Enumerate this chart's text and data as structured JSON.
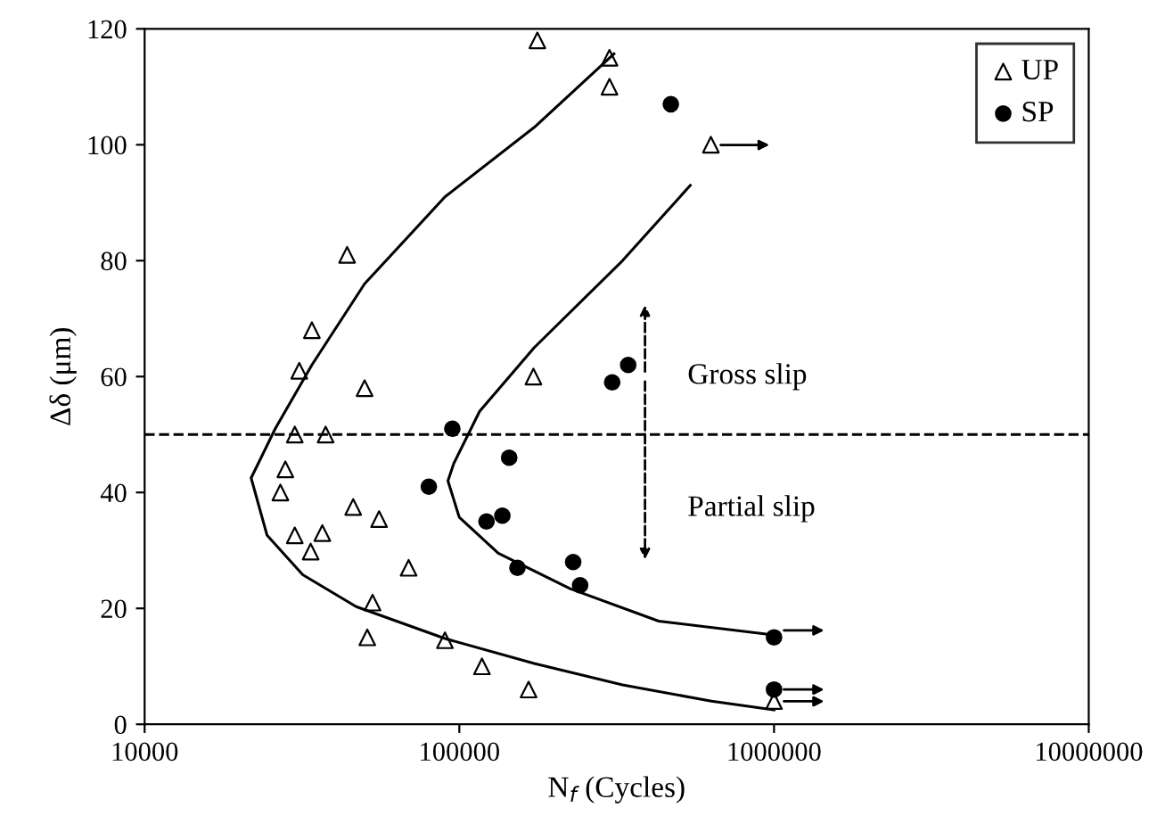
{
  "chart_data": {
    "type": "scatter",
    "xlabel": "N$_{f}$ (Cycles)",
    "ylabel": "Δδ (μm)",
    "log": "x",
    "xlim": [
      10000,
      10000000
    ],
    "xticks": [
      10000,
      100000,
      1000000,
      10000000
    ],
    "ylim": [
      0,
      120
    ],
    "yticks": [
      0,
      20,
      40,
      60,
      80,
      100,
      120
    ],
    "grid": false,
    "legend": "top right",
    "series": [
      {
        "name": "UP",
        "marker": "triangle",
        "color": "#000000",
        "x": [
          177000,
          300000,
          300000,
          44000,
          34000,
          31000,
          50000,
          630000,
          172000,
          30000,
          37600,
          28000,
          27000,
          46000,
          55600,
          30000,
          36700,
          33700,
          69000,
          53000,
          51000,
          90000,
          118000,
          166000,
          1000000
        ],
        "values": [
          118,
          115,
          110,
          81,
          68,
          61,
          58,
          100,
          60,
          50,
          50,
          44,
          40,
          37.5,
          35.4,
          32.6,
          33,
          29.8,
          27,
          21,
          15,
          14.5,
          10,
          6,
          4
        ]
      },
      {
        "name": "SP",
        "marker": "circle",
        "color": "#000000",
        "x": [
          470000,
          95000,
          144000,
          80000,
          122000,
          137000,
          153000,
          230000,
          242000,
          344000,
          306000,
          1000000,
          1000000
        ],
        "values": [
          107,
          51,
          46,
          41,
          35,
          36,
          27,
          28,
          24,
          62,
          59,
          15,
          6
        ]
      },
      {
        "type": "line",
        "marker": "none",
        "color": "#000000",
        "x": [
          310000,
          173000,
          90000,
          50000,
          34000,
          26000,
          21800,
          24500,
          31800,
          47000,
          90000,
          173000,
          330000,
          633000,
          1000000
        ],
        "values": [
          115.7,
          103,
          91,
          76,
          62,
          51,
          42.5,
          32.6,
          25.8,
          20.3,
          14.8,
          10.5,
          6.8,
          4,
          2.5
        ]
      },
      {
        "type": "line",
        "marker": "none",
        "color": "#000000",
        "x": [
          542000,
          330000,
          173000,
          116000,
          96000,
          92000,
          100000,
          133000,
          225000,
          430000,
          1000000
        ],
        "values": [
          93,
          80,
          65,
          54,
          45,
          42,
          35.7,
          29.5,
          23.4,
          17.8,
          15.4
        ]
      }
    ],
    "ref_lines": [
      {
        "axis": "y",
        "value": 50,
        "line_style": "dashed",
        "color": "#000000"
      }
    ],
    "annotations": [
      "Gross slip",
      "Partial slip"
    ]
  }
}
